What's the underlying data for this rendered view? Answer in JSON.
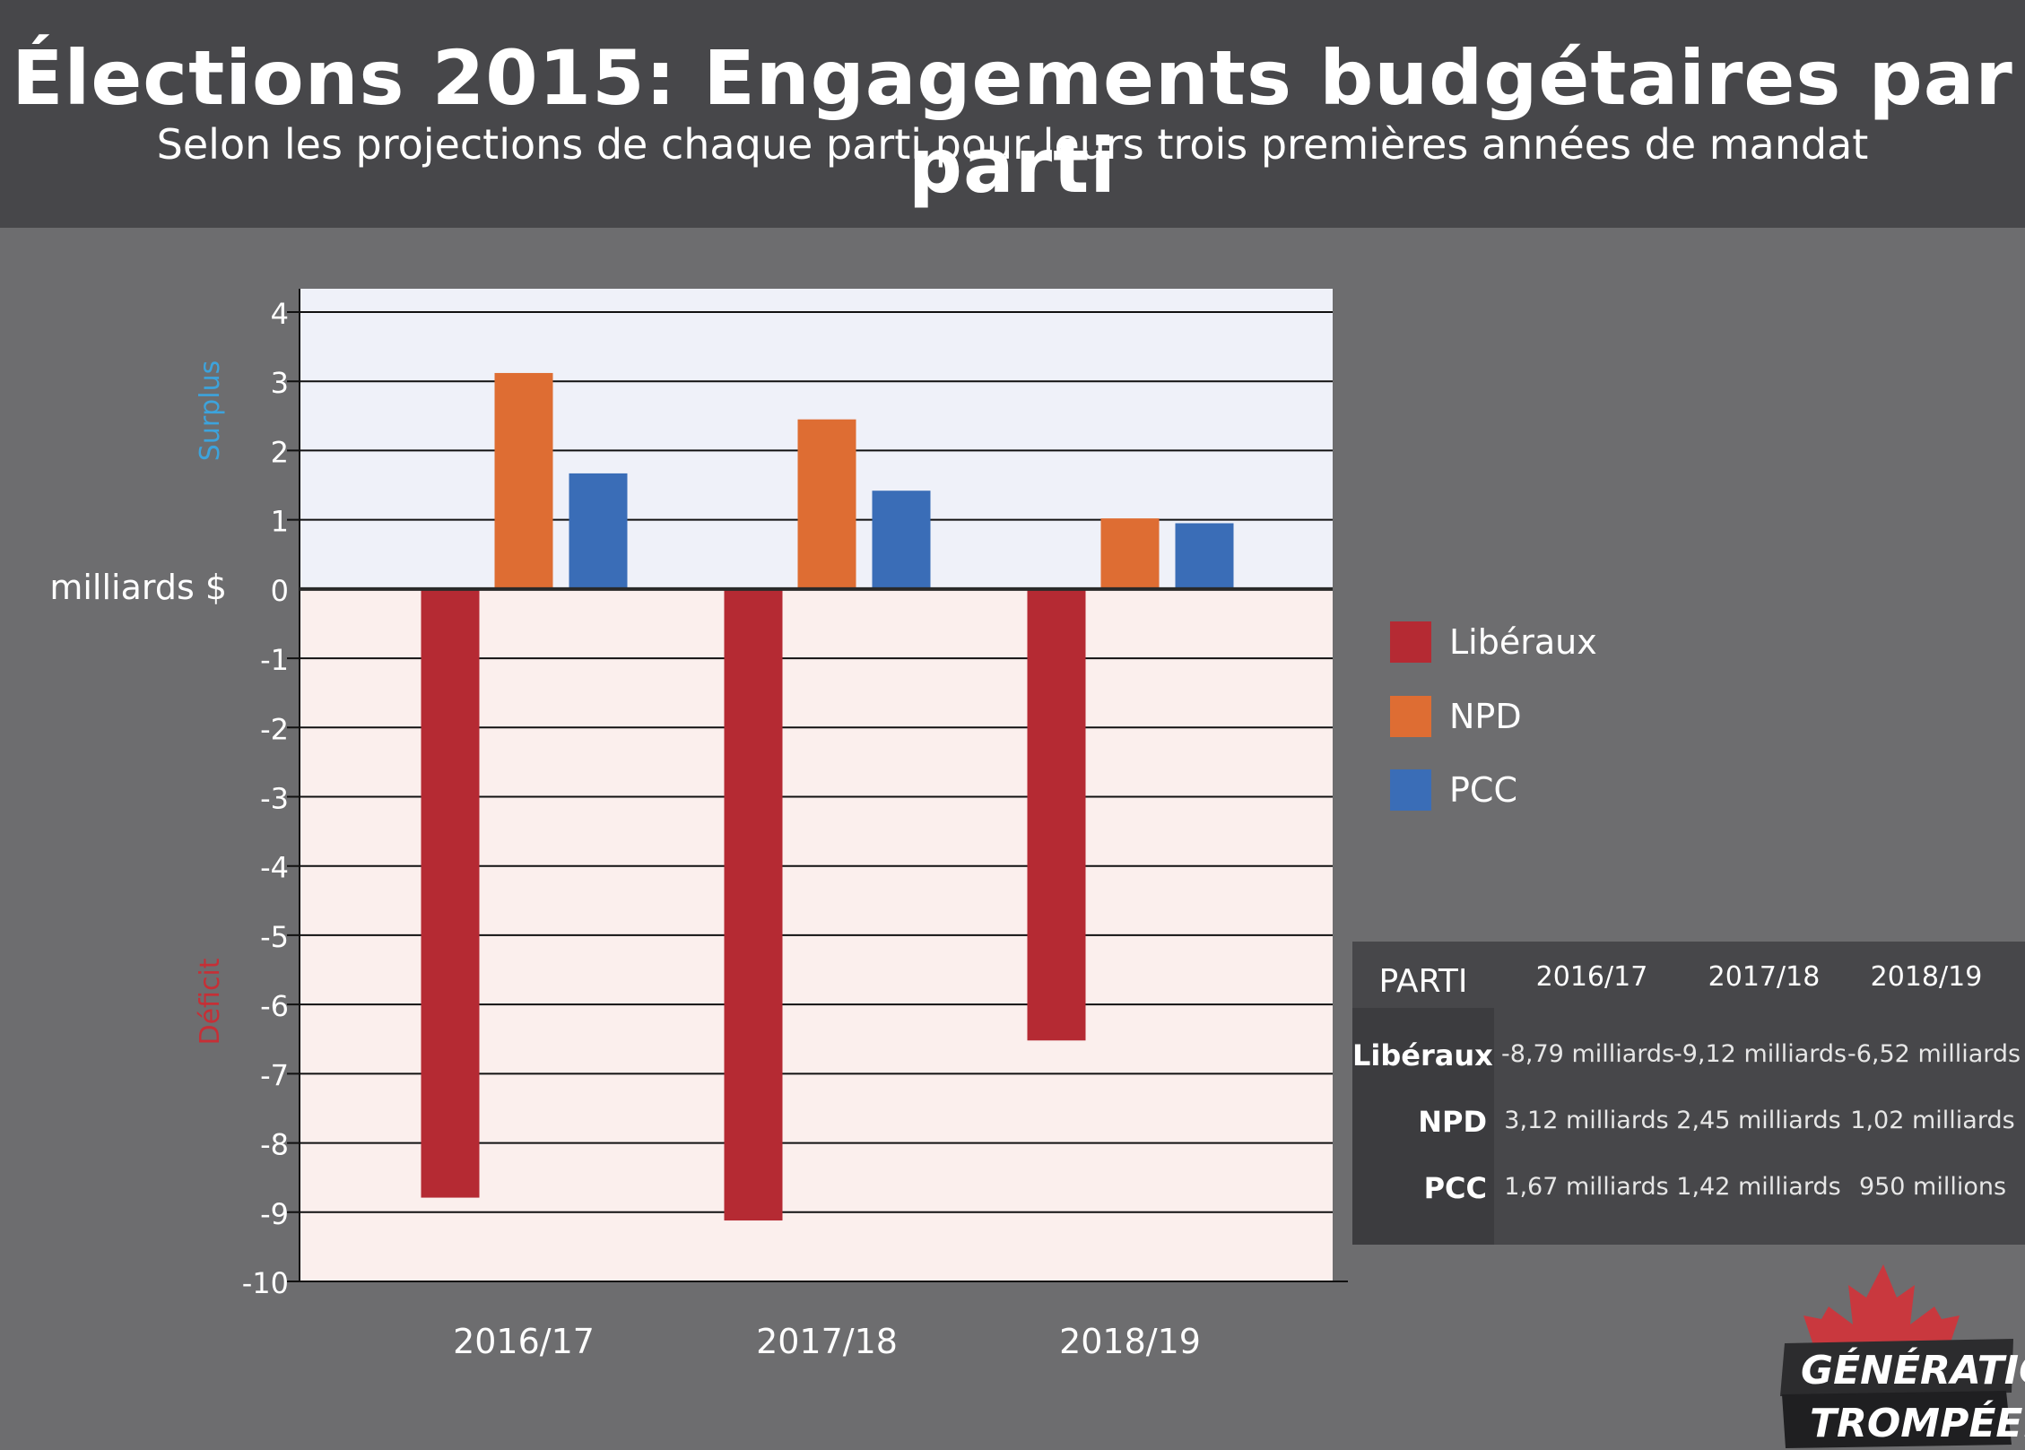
{
  "header": {
    "title": "Élections 2015: Engagements budgétaires par parti",
    "subtitle": "Selon les projections de chaque parti pour leurs trois premières années de mandat"
  },
  "chart_data": {
    "type": "bar",
    "categories": [
      "2016/17",
      "2017/18",
      "2018/19"
    ],
    "series": [
      {
        "name": "Libéraux",
        "values": [
          -8.79,
          -9.12,
          -6.52
        ],
        "color": "#b52a33"
      },
      {
        "name": "NPD",
        "values": [
          3.12,
          2.45,
          1.02
        ],
        "color": "#de6d33"
      },
      {
        "name": "PCC",
        "values": [
          1.67,
          1.42,
          0.95
        ],
        "color": "#3a6db7"
      }
    ],
    "ylim": [
      -10,
      4
    ],
    "yticks": [
      "4",
      "3",
      "2",
      "1",
      "0",
      "-1",
      "-2",
      "-3",
      "-4",
      "-5",
      "-6",
      "-7",
      "-8",
      "-9",
      "-10"
    ],
    "ylabel": "milliards $",
    "region_labels": {
      "positive": "Surplus",
      "negative": "Déficit"
    },
    "colors": {
      "positive_region": "#eff1f9",
      "negative_region": "#fbefed",
      "surplus_text": "#3da3dc",
      "deficit_text": "#c62f36"
    },
    "grid": true,
    "legend_position": "right"
  },
  "table": {
    "header": [
      "PARTI",
      "2016/17",
      "2017/18",
      "2018/19"
    ],
    "rows": [
      {
        "party": "Libéraux",
        "values": [
          "-8,79 milliards",
          "-9,12 milliards",
          "-6,52 milliards"
        ]
      },
      {
        "party": "NPD",
        "values": [
          "3,12 milliards",
          "2,45 milliards",
          "1,02 milliards"
        ]
      },
      {
        "party": "PCC",
        "values": [
          "1,67 milliards",
          "1,42 milliards",
          "950 millions"
        ]
      }
    ]
  },
  "logo": {
    "line1": "GÉNÉRATION",
    "line2": "TROMPÉE.ca",
    "icon": "maple-leaf-icon",
    "leaf_color": "#c9383e"
  }
}
